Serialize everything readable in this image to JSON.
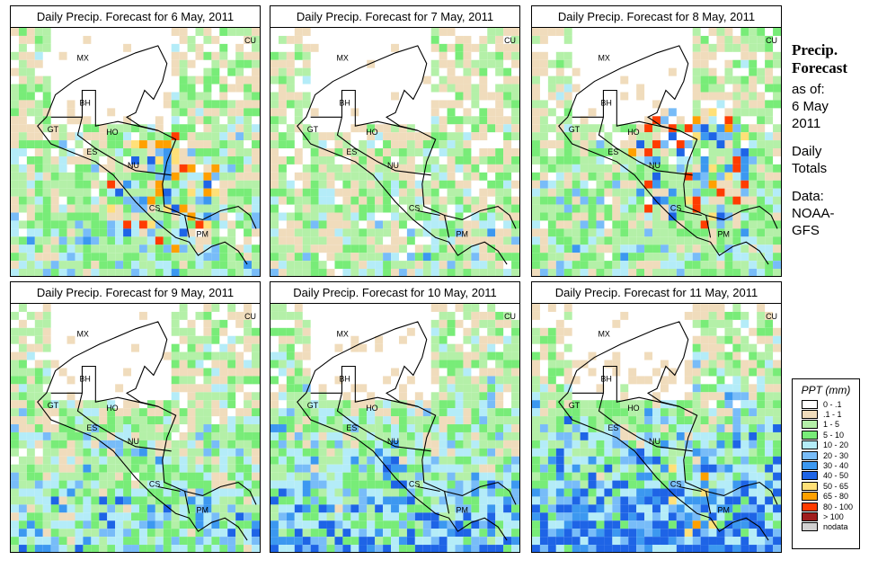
{
  "panels": [
    {
      "title": "Daily Precip. Forecast for  6 May, 2011",
      "seed": 1,
      "wet": 0.35,
      "hot": [
        170,
        180,
        65,
        10
      ]
    },
    {
      "title": "Daily Precip. Forecast for  7 May, 2011",
      "seed": 2,
      "wet": 0.25,
      "hot": null
    },
    {
      "title": "Daily Precip. Forecast for  8 May, 2011",
      "seed": 3,
      "wet": 0.35,
      "hot": [
        175,
        150,
        70,
        10
      ]
    },
    {
      "title": "Daily Precip. Forecast for  9 May, 2011",
      "seed": 4,
      "wet": 0.5,
      "hot": null
    },
    {
      "title": "Daily Precip. Forecast for  10 May, 2011",
      "seed": 5,
      "wet": 0.65,
      "hot": null
    },
    {
      "title": "Daily Precip. Forecast for  11 May, 2011",
      "seed": 6,
      "wet": 0.8,
      "hot": [
        170,
        215,
        40,
        8
      ]
    }
  ],
  "countries": [
    "MX",
    "BH",
    "GT",
    "HO",
    "ES",
    "NU",
    "CS",
    "PM",
    "CU"
  ],
  "side": {
    "title1": "Precip.",
    "title2": "Forecast",
    "asof": "as of:",
    "date1": "6 May",
    "date2": "2011",
    "daily1": "Daily",
    "daily2": "Totals",
    "data1": "Data:",
    "data2": "NOAA-",
    "data3": "GFS"
  },
  "legend": {
    "title": "PPT (mm)",
    "items": [
      {
        "label": "0 - .1",
        "color": "#ffffff"
      },
      {
        "label": ".1 - 1",
        "color": "#f0dcbc"
      },
      {
        "label": "1 - 5",
        "color": "#b4f0a8"
      },
      {
        "label": "5 - 10",
        "color": "#78ec78"
      },
      {
        "label": "10 - 20",
        "color": "#b4ecf8"
      },
      {
        "label": "20 - 30",
        "color": "#78bcf8"
      },
      {
        "label": "30 - 40",
        "color": "#3c98f0"
      },
      {
        "label": "40 - 50",
        "color": "#1e64e6"
      },
      {
        "label": "50 - 65",
        "color": "#ffe078"
      },
      {
        "label": "65 - 80",
        "color": "#ffa000"
      },
      {
        "label": "80 - 100",
        "color": "#ff3c00"
      },
      {
        "label": "> 100",
        "color": "#a01e1e"
      },
      {
        "label": "nodata",
        "color": "#d2d2d2"
      }
    ]
  }
}
